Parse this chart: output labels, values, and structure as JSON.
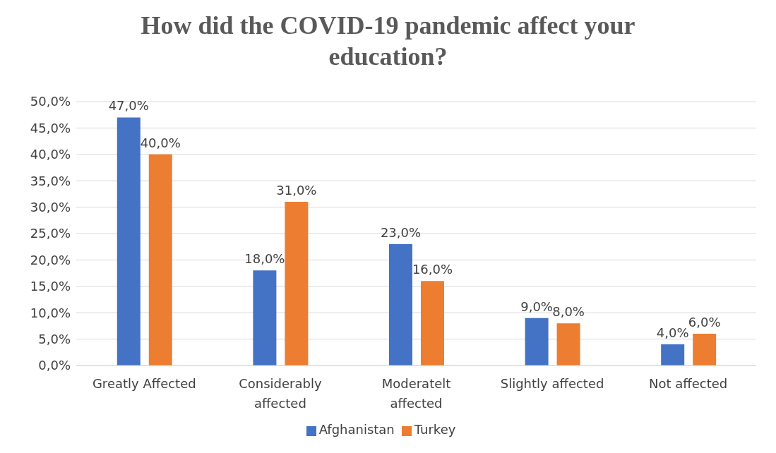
{
  "chart_data": {
    "type": "bar",
    "title": "How did the COVID-19 pandemic affect your education?",
    "categories": [
      "Greatly Affected",
      "Considerably affected",
      "Moderatelt affected",
      "Slightly affected",
      "Not affected"
    ],
    "series": [
      {
        "name": "Afghanistan",
        "color": "#4472c4",
        "values": [
          47,
          18,
          23,
          9,
          4
        ],
        "value_labels": [
          "47,0%",
          "18,0%",
          "23,0%",
          "9,0%",
          "4,0%"
        ]
      },
      {
        "name": "Turkey",
        "color": "#ed7d31",
        "values": [
          40,
          31,
          16,
          8,
          6
        ],
        "value_labels": [
          "40,0%",
          "31,0%",
          "16,0%",
          "8,0%",
          "6,0%"
        ]
      }
    ],
    "ylim": [
      0,
      50
    ],
    "yticks": [
      {
        "value": 0,
        "label": "0,0%"
      },
      {
        "value": 5,
        "label": "5,0%"
      },
      {
        "value": 10,
        "label": "10,0%"
      },
      {
        "value": 15,
        "label": "15,0%"
      },
      {
        "value": 20,
        "label": "20,0%"
      },
      {
        "value": 25,
        "label": "25,0%"
      },
      {
        "value": 30,
        "label": "30,0%"
      },
      {
        "value": 35,
        "label": "35,0%"
      },
      {
        "value": 40,
        "label": "40,0%"
      },
      {
        "value": 45,
        "label": "45,0%"
      },
      {
        "value": 50,
        "label": "50,0%"
      }
    ],
    "grid": "y",
    "legend": "bottom"
  }
}
